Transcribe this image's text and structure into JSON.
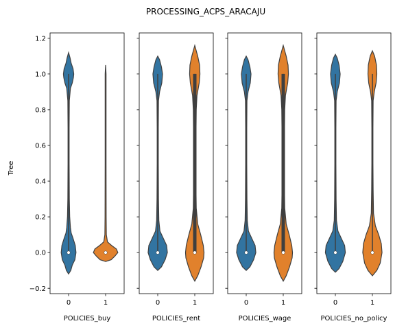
{
  "chart_data": {
    "type": "violin",
    "title": "PROCESSING_ACPS_ARACAJU",
    "ylabel": "Tree",
    "ylim": [
      -0.23,
      1.23
    ],
    "yticks": [
      -0.2,
      0.0,
      0.2,
      0.4,
      0.6,
      0.8,
      1.0,
      1.2
    ],
    "ytick_labels": [
      "−0.2",
      "0.0",
      "0.2",
      "0.4",
      "0.6",
      "0.8",
      "1.0",
      "1.2"
    ],
    "grid": false,
    "colors": {
      "0": "#3274a1",
      "1": "#e1812c"
    },
    "panels": [
      {
        "xlabel": "POLICIES_buy",
        "categories": [
          "0",
          "1"
        ],
        "violins": [
          {
            "category": "0",
            "median": 0.0,
            "q1": 0.0,
            "q3": 0.0,
            "whisker_low": 0.0,
            "whisker_high": 1.0,
            "density": [
              [
                -0.12,
                0.0
              ],
              [
                -0.1,
                0.06
              ],
              [
                -0.07,
                0.1
              ],
              [
                -0.04,
                0.17
              ],
              [
                0.0,
                0.2
              ],
              [
                0.04,
                0.18
              ],
              [
                0.08,
                0.12
              ],
              [
                0.11,
                0.07
              ],
              [
                0.14,
                0.05
              ],
              [
                0.2,
                0.03
              ],
              [
                0.3,
                0.02
              ],
              [
                0.5,
                0.015
              ],
              [
                0.7,
                0.015
              ],
              [
                0.85,
                0.02
              ],
              [
                0.92,
                0.05
              ],
              [
                0.95,
                0.1
              ],
              [
                0.98,
                0.13
              ],
              [
                1.0,
                0.14
              ],
              [
                1.03,
                0.12
              ],
              [
                1.06,
                0.07
              ],
              [
                1.09,
                0.04
              ],
              [
                1.12,
                0.0
              ]
            ]
          },
          {
            "category": "1",
            "median": 0.0,
            "q1": 0.0,
            "q3": 0.0,
            "whisker_low": 0.0,
            "whisker_high": 0.0,
            "density": [
              [
                -0.05,
                0.0
              ],
              [
                -0.04,
                0.15
              ],
              [
                -0.02,
                0.25
              ],
              [
                0.0,
                0.33
              ],
              [
                0.02,
                0.29
              ],
              [
                0.04,
                0.16
              ],
              [
                0.06,
                0.05
              ],
              [
                0.1,
                0.02
              ],
              [
                0.2,
                0.015
              ],
              [
                0.5,
                0.012
              ],
              [
                0.8,
                0.012
              ],
              [
                1.0,
                0.012
              ],
              [
                1.05,
                0.0
              ]
            ]
          }
        ]
      },
      {
        "xlabel": "POLICIES_rent",
        "categories": [
          "0",
          "1"
        ],
        "violins": [
          {
            "category": "0",
            "median": 0.0,
            "q1": 0.0,
            "q3": 0.0,
            "whisker_low": 0.0,
            "whisker_high": 1.0,
            "density": [
              [
                -0.1,
                0.0
              ],
              [
                -0.08,
                0.1
              ],
              [
                -0.04,
                0.2
              ],
              [
                0.0,
                0.26
              ],
              [
                0.04,
                0.24
              ],
              [
                0.08,
                0.15
              ],
              [
                0.12,
                0.06
              ],
              [
                0.18,
                0.03
              ],
              [
                0.3,
                0.02
              ],
              [
                0.5,
                0.015
              ],
              [
                0.7,
                0.015
              ],
              [
                0.85,
                0.02
              ],
              [
                0.9,
                0.05
              ],
              [
                0.95,
                0.11
              ],
              [
                1.0,
                0.13
              ],
              [
                1.04,
                0.1
              ],
              [
                1.08,
                0.05
              ],
              [
                1.1,
                0.0
              ]
            ]
          },
          {
            "category": "1",
            "median": 0.0,
            "q1": 0.0,
            "q3": 1.0,
            "whisker_low": 0.0,
            "whisker_high": 1.0,
            "density": [
              [
                -0.16,
                0.0
              ],
              [
                -0.13,
                0.08
              ],
              [
                -0.08,
                0.17
              ],
              [
                -0.03,
                0.24
              ],
              [
                0.0,
                0.25
              ],
              [
                0.04,
                0.23
              ],
              [
                0.1,
                0.16
              ],
              [
                0.16,
                0.08
              ],
              [
                0.25,
                0.04
              ],
              [
                0.4,
                0.03
              ],
              [
                0.6,
                0.03
              ],
              [
                0.8,
                0.04
              ],
              [
                0.88,
                0.06
              ],
              [
                0.95,
                0.12
              ],
              [
                1.0,
                0.14
              ],
              [
                1.05,
                0.13
              ],
              [
                1.1,
                0.08
              ],
              [
                1.16,
                0.0
              ]
            ]
          }
        ]
      },
      {
        "xlabel": "POLICIES_wage",
        "categories": [
          "0",
          "1"
        ],
        "violins": [
          {
            "category": "0",
            "median": 0.0,
            "q1": 0.0,
            "q3": 0.0,
            "whisker_low": 0.0,
            "whisker_high": 1.0,
            "density": [
              [
                -0.1,
                0.0
              ],
              [
                -0.08,
                0.1
              ],
              [
                -0.04,
                0.2
              ],
              [
                0.0,
                0.26
              ],
              [
                0.04,
                0.24
              ],
              [
                0.08,
                0.15
              ],
              [
                0.12,
                0.06
              ],
              [
                0.18,
                0.03
              ],
              [
                0.3,
                0.02
              ],
              [
                0.5,
                0.015
              ],
              [
                0.7,
                0.015
              ],
              [
                0.85,
                0.02
              ],
              [
                0.9,
                0.05
              ],
              [
                0.95,
                0.11
              ],
              [
                1.0,
                0.13
              ],
              [
                1.04,
                0.1
              ],
              [
                1.08,
                0.05
              ],
              [
                1.1,
                0.0
              ]
            ]
          },
          {
            "category": "1",
            "median": 0.0,
            "q1": 0.0,
            "q3": 1.0,
            "whisker_low": 0.0,
            "whisker_high": 1.0,
            "density": [
              [
                -0.16,
                0.0
              ],
              [
                -0.13,
                0.08
              ],
              [
                -0.08,
                0.17
              ],
              [
                -0.03,
                0.24
              ],
              [
                0.0,
                0.25
              ],
              [
                0.04,
                0.23
              ],
              [
                0.1,
                0.16
              ],
              [
                0.16,
                0.08
              ],
              [
                0.25,
                0.04
              ],
              [
                0.4,
                0.03
              ],
              [
                0.6,
                0.03
              ],
              [
                0.8,
                0.04
              ],
              [
                0.88,
                0.06
              ],
              [
                0.95,
                0.12
              ],
              [
                1.0,
                0.14
              ],
              [
                1.05,
                0.13
              ],
              [
                1.1,
                0.08
              ],
              [
                1.16,
                0.0
              ]
            ]
          }
        ]
      },
      {
        "xlabel": "POLICIES_no_policy",
        "categories": [
          "0",
          "1"
        ],
        "violins": [
          {
            "category": "0",
            "median": 0.0,
            "q1": 0.0,
            "q3": 0.0,
            "whisker_low": 0.0,
            "whisker_high": 1.0,
            "density": [
              [
                -0.11,
                0.0
              ],
              [
                -0.09,
                0.1
              ],
              [
                -0.05,
                0.2
              ],
              [
                0.0,
                0.27
              ],
              [
                0.04,
                0.25
              ],
              [
                0.08,
                0.16
              ],
              [
                0.12,
                0.07
              ],
              [
                0.18,
                0.03
              ],
              [
                0.3,
                0.02
              ],
              [
                0.5,
                0.015
              ],
              [
                0.7,
                0.015
              ],
              [
                0.85,
                0.02
              ],
              [
                0.9,
                0.05
              ],
              [
                0.95,
                0.11
              ],
              [
                1.0,
                0.13
              ],
              [
                1.05,
                0.1
              ],
              [
                1.09,
                0.05
              ],
              [
                1.11,
                0.0
              ]
            ]
          },
          {
            "category": "1",
            "median": 0.0,
            "q1": 0.0,
            "q3": 0.0,
            "whisker_low": 0.0,
            "whisker_high": 1.0,
            "density": [
              [
                -0.13,
                0.0
              ],
              [
                -0.1,
                0.12
              ],
              [
                -0.06,
                0.21
              ],
              [
                0.0,
                0.26
              ],
              [
                0.05,
                0.24
              ],
              [
                0.1,
                0.17
              ],
              [
                0.15,
                0.08
              ],
              [
                0.22,
                0.03
              ],
              [
                0.35,
                0.02
              ],
              [
                0.5,
                0.015
              ],
              [
                0.7,
                0.015
              ],
              [
                0.85,
                0.02
              ],
              [
                0.9,
                0.05
              ],
              [
                0.95,
                0.1
              ],
              [
                1.0,
                0.12
              ],
              [
                1.05,
                0.11
              ],
              [
                1.1,
                0.06
              ],
              [
                1.13,
                0.0
              ]
            ]
          }
        ]
      }
    ]
  }
}
